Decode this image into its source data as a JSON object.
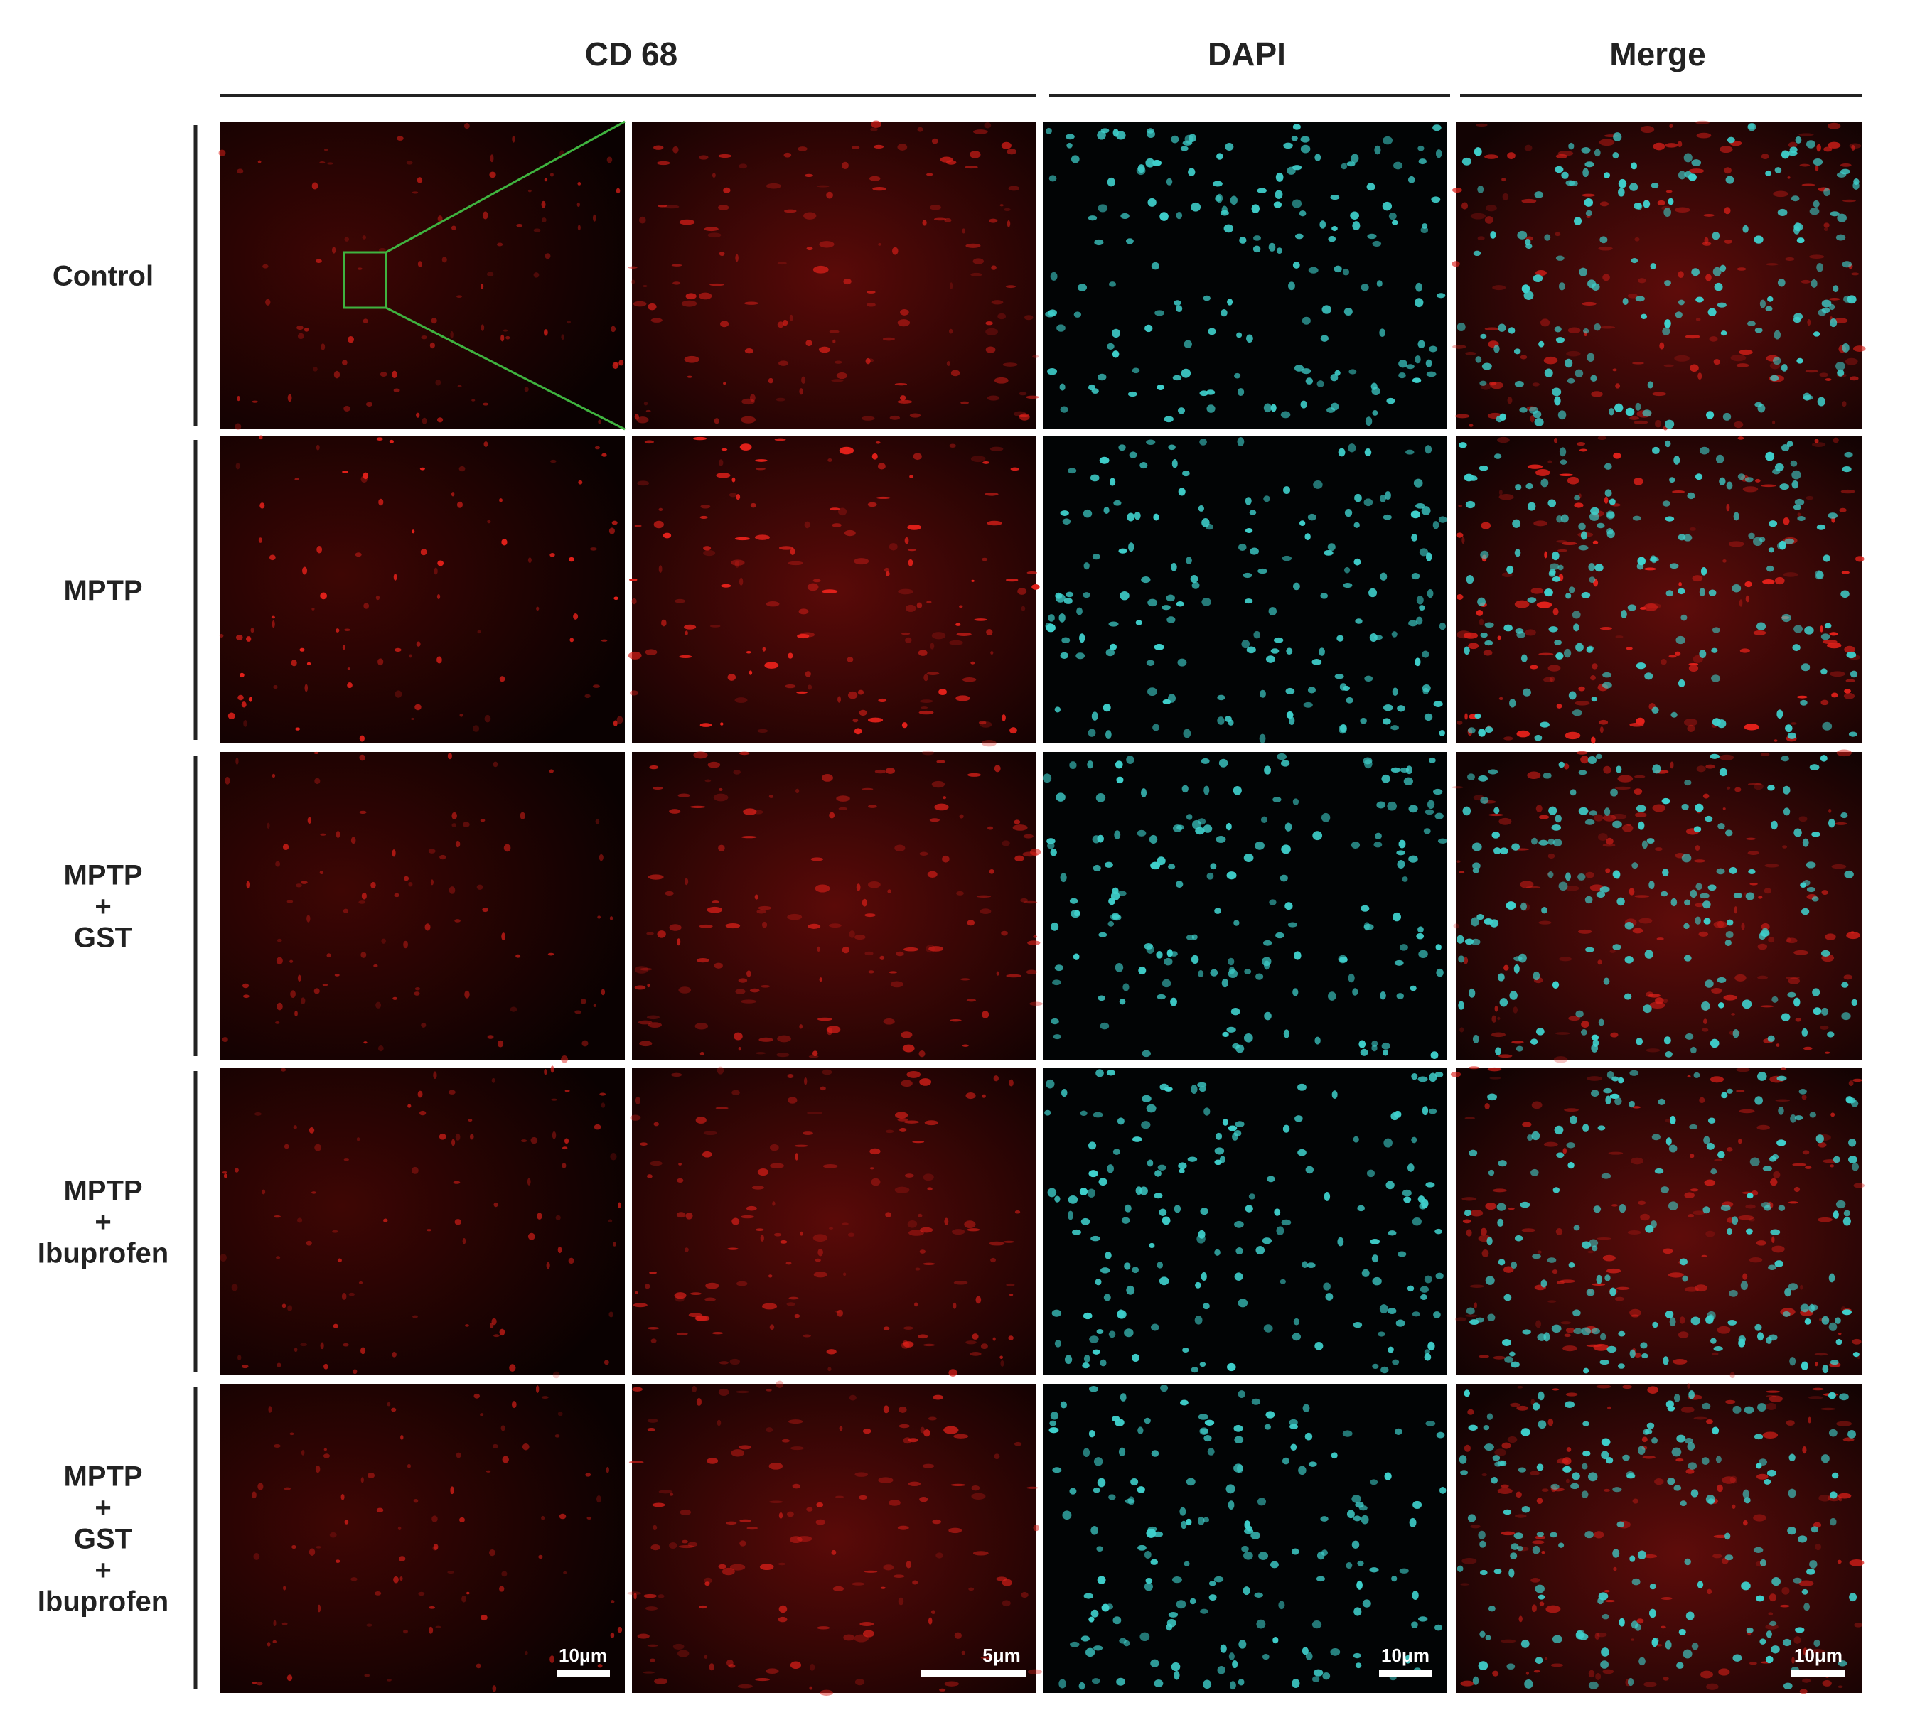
{
  "columns": [
    "CD 68",
    "DAPI",
    "Merge"
  ],
  "rows": [
    {
      "label": [
        "Control"
      ]
    },
    {
      "label": [
        "MPTP"
      ]
    },
    {
      "label": [
        "MPTP",
        "+",
        "GST"
      ]
    },
    {
      "label": [
        "MPTP",
        "+",
        "Ibuprofen"
      ]
    },
    {
      "label": [
        "MPTP",
        "+",
        "GST",
        "+",
        "Ibuprofen"
      ]
    }
  ],
  "scale_bars": [
    "10μm",
    "5μm",
    "10μm",
    "10μm"
  ]
}
